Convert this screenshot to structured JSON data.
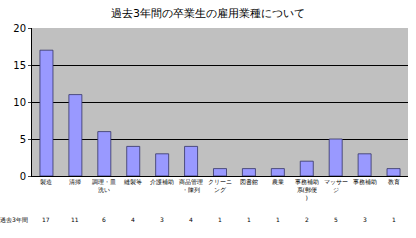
{
  "chart_data": {
    "type": "bar",
    "title": "過去3年間の卒業生の雇用業種について",
    "categories": [
      "製造",
      "清掃",
      "調理・皿洗い",
      "縫製等",
      "介護補助",
      "商品管理・陳列",
      "クリーニング",
      "図書館",
      "農業",
      "事務補助系(郵便)",
      "マッサージ",
      "事務補助",
      "教育"
    ],
    "series": [
      {
        "name": "過去3年間",
        "color": "#9999ff",
        "values": [
          17,
          11,
          6,
          4,
          3,
          4,
          1,
          1,
          1,
          2,
          5,
          3,
          1
        ]
      }
    ],
    "ylim": [
      0,
      20
    ],
    "yticks": [
      0,
      5,
      10,
      15,
      20
    ],
    "grid": true
  }
}
